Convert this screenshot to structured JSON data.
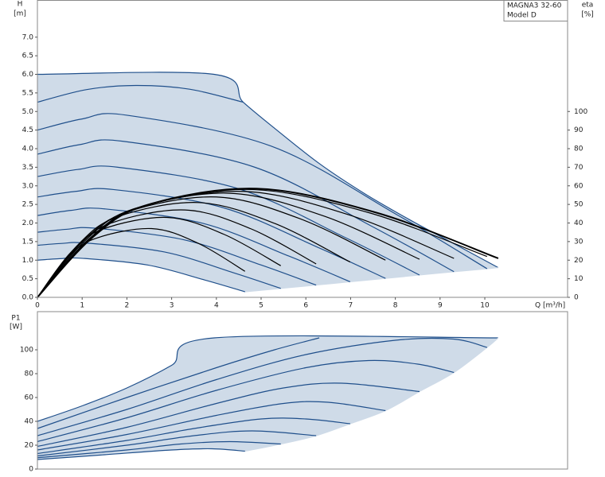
{
  "chart_data": [
    {
      "type": "line",
      "title": "MAGNA3 32-60",
      "subtitle": "Model D",
      "ylabel": "H",
      "ylabel_unit": "[m]",
      "y2label": "eta",
      "y2label_unit": "[%]",
      "xlabel": "Q [m³/h]",
      "xlim": [
        0,
        11.85
      ],
      "xticks": [
        0,
        1,
        2,
        3,
        4,
        5,
        6,
        7,
        8,
        9,
        10
      ],
      "ylim": [
        0,
        8
      ],
      "yticks": [
        {
          "value": 0,
          "label": "0.0"
        },
        0.5,
        {
          "value": 1,
          "label": "1.0"
        },
        1.5,
        {
          "value": 2,
          "label": "2.0"
        },
        2.5,
        {
          "value": 3,
          "label": "3.0"
        },
        3.5,
        {
          "value": 4,
          "label": "4.0"
        },
        4.5,
        {
          "value": 5,
          "label": "5.0"
        },
        5.5,
        {
          "value": 6,
          "label": "6.0"
        },
        6.5,
        {
          "value": 7,
          "label": "7.0"
        }
      ],
      "y2lim": [
        0,
        160
      ],
      "y2ticks": [
        0,
        10,
        20,
        30,
        40,
        50,
        60,
        70,
        80,
        90,
        100
      ],
      "grid": false,
      "shade": "#cfdbe8",
      "series": [
        {
          "color": "#1f4f8b",
          "x": [
            0,
            3.95,
            4.6,
            5.3,
            6.3,
            7.3,
            8.3,
            9.3,
            10.3
          ],
          "values": [
            6.0,
            6.0,
            5.25,
            4.55,
            3.6,
            2.8,
            2.1,
            1.45,
            0.8
          ]
        },
        {
          "color": "#cfdbe8",
          "x": [
            10.3,
            10.05,
            9.31,
            8.54,
            7.78,
            6.99,
            6.23,
            5.44,
            4.64
          ],
          "values": [
            0.8,
            0.77,
            0.69,
            0.6,
            0.51,
            0.42,
            0.33,
            0.24,
            0.15
          ]
        },
        {
          "color": "#1f4f8b",
          "x": [
            0,
            1.1,
            2.2,
            3.4,
            4.6
          ],
          "values": [
            5.25,
            5.59,
            5.7,
            5.6,
            5.25
          ]
        },
        {
          "color": "#1f4f8b",
          "x": [
            0,
            1,
            2,
            5.22,
            8.04,
            10.05
          ],
          "values": [
            4.5,
            4.8,
            4.9,
            4.07,
            2.22,
            0.77
          ]
        },
        {
          "color": "#1f4f8b",
          "x": [
            0,
            0.95,
            1.9,
            4.86,
            7.46,
            9.31
          ],
          "values": [
            3.85,
            4.11,
            4.2,
            3.5,
            1.92,
            0.69
          ]
        },
        {
          "color": "#1f4f8b",
          "x": [
            0,
            0.9,
            1.8,
            4.5,
            6.86,
            8.54
          ],
          "values": [
            3.25,
            3.44,
            3.5,
            2.92,
            1.62,
            0.6
          ]
        },
        {
          "color": "#1f4f8b",
          "x": [
            0,
            0.85,
            1.7,
            4.13,
            6.26,
            7.78
          ],
          "values": [
            2.7,
            2.85,
            2.9,
            2.42,
            1.35,
            0.51
          ]
        },
        {
          "color": "#1f4f8b",
          "x": [
            0,
            0.75,
            1.5,
            3.7,
            5.62,
            6.99
          ],
          "values": [
            2.2,
            2.34,
            2.38,
            1.99,
            1.11,
            0.42
          ]
        },
        {
          "color": "#1f4f8b",
          "x": [
            0,
            0.65,
            1.3,
            3.27,
            5.0,
            6.23
          ],
          "values": [
            1.75,
            1.83,
            1.86,
            1.55,
            0.87,
            0.33
          ]
        },
        {
          "color": "#1f4f8b",
          "x": [
            0,
            0.55,
            1.1,
            2.84,
            4.36,
            5.44
          ],
          "values": [
            1.4,
            1.45,
            1.46,
            1.22,
            0.67,
            0.24
          ]
        },
        {
          "color": "#1f4f8b",
          "x": [
            0,
            0.5,
            1.0,
            2.46,
            3.73,
            4.64
          ],
          "values": [
            1.0,
            1.04,
            1.05,
            0.87,
            0.47,
            0.15
          ]
        },
        {
          "color": "#000000",
          "axis": "y2",
          "x": [
            0,
            0.64,
            1.28,
            2.55,
            3.6,
            4.64
          ],
          "values": [
            0,
            20.4,
            31.5,
            37,
            29,
            14
          ]
        },
        {
          "color": "#000000",
          "axis": "y2",
          "x": [
            0,
            0.73,
            1.45,
            2.9,
            4.17,
            5.44
          ],
          "values": [
            0,
            23.7,
            36.6,
            43,
            33.9,
            17
          ]
        },
        {
          "color": "#000000",
          "axis": "y2",
          "x": [
            0,
            0.83,
            1.65,
            3.3,
            4.77,
            6.23
          ],
          "values": [
            0,
            25.9,
            40,
            47,
            36.9,
            18
          ]
        },
        {
          "color": "#000000",
          "axis": "y2",
          "x": [
            0,
            0.9,
            1.8,
            3.6,
            5.3,
            6.99
          ],
          "values": [
            0,
            28.1,
            43.4,
            51,
            39.8,
            19
          ]
        },
        {
          "color": "#000000",
          "axis": "y2",
          "x": [
            0,
            1,
            2,
            4,
            5.89,
            7.78
          ],
          "values": [
            0,
            29.7,
            45.9,
            54,
            42.1,
            20
          ]
        },
        {
          "color": "#000000",
          "axis": "y2",
          "x": [
            0,
            1.08,
            2.15,
            4.3,
            6.42,
            8.54
          ],
          "values": [
            0,
            30.8,
            47.6,
            56,
            43.6,
            20.5
          ]
        },
        {
          "color": "#000000",
          "axis": "y2",
          "x": [
            0,
            1.15,
            2.3,
            4.6,
            6.96,
            9.31
          ],
          "values": [
            0,
            31.4,
            48.5,
            57,
            44.4,
            21
          ]
        },
        {
          "color": "#000000",
          "axis": "y2",
          "x": [
            0,
            1.2,
            2.4,
            4.8,
            7.43,
            10.05
          ],
          "values": [
            0,
            31.9,
            49.3,
            58,
            45.4,
            22
          ]
        },
        {
          "color": "#000000",
          "axis": "y2",
          "width": 2,
          "x": [
            0,
            1.23,
            2.45,
            4.9,
            7.6,
            10.3
          ],
          "values": [
            0,
            32.2,
            49.7,
            58.5,
            45.4,
            21
          ]
        }
      ]
    },
    {
      "type": "line",
      "ylabel": "P1",
      "ylabel_unit": "[W]",
      "xlim": [
        0,
        11.85
      ],
      "ylim": [
        0,
        132
      ],
      "yticks": [
        0,
        20,
        40,
        60,
        80,
        100
      ],
      "grid": false,
      "shade": "#cfdbe8",
      "series": [
        {
          "color": "#1f4f8b",
          "x": [
            0,
            1,
            2,
            3,
            3.95,
            10.3
          ],
          "values": [
            40,
            53,
            68,
            87,
            110,
            110
          ]
        },
        {
          "color": "#cfdbe8",
          "x": [
            10.3,
            10.05,
            9.31,
            8.54,
            7.78,
            6.99,
            6.23,
            5.44,
            4.64
          ],
          "values": [
            110,
            102,
            81,
            65,
            49,
            38,
            28,
            21,
            15
          ]
        },
        {
          "color": "#1f4f8b",
          "x": [
            0,
            2,
            4,
            5.3,
            6.3
          ],
          "values": [
            34,
            60,
            85,
            100,
            110
          ]
        },
        {
          "color": "#1f4f8b",
          "x": [
            0,
            2,
            4,
            6,
            8,
            9.3,
            10.05
          ],
          "values": [
            28,
            50,
            75,
            96,
            108,
            109,
            102
          ]
        },
        {
          "color": "#1f4f8b",
          "x": [
            0,
            2,
            4,
            6,
            7.4,
            8.5,
            9.31
          ],
          "values": [
            23,
            43,
            66,
            85,
            91,
            88,
            81
          ]
        },
        {
          "color": "#1f4f8b",
          "x": [
            0,
            2,
            4,
            5.5,
            6.8,
            8.54
          ],
          "values": [
            19,
            35,
            55,
            68,
            72,
            65
          ]
        },
        {
          "color": "#1f4f8b",
          "x": [
            0,
            2,
            4,
            5.5,
            6.5,
            7.78
          ],
          "values": [
            16,
            29,
            45,
            55,
            56,
            49
          ]
        },
        {
          "color": "#1f4f8b",
          "x": [
            0,
            2,
            3.5,
            5,
            6,
            6.99
          ],
          "values": [
            13,
            24,
            34,
            42,
            42,
            38
          ]
        },
        {
          "color": "#1f4f8b",
          "x": [
            0,
            2,
            3.5,
            4.8,
            6.23
          ],
          "values": [
            11,
            20,
            28,
            32,
            28
          ]
        },
        {
          "color": "#1f4f8b",
          "x": [
            0,
            2,
            3.2,
            4.3,
            5.44
          ],
          "values": [
            9.5,
            16,
            21,
            23,
            21
          ]
        },
        {
          "color": "#1f4f8b",
          "x": [
            0,
            1.5,
            3,
            3.9,
            4.64
          ],
          "values": [
            8,
            12,
            16,
            17,
            15
          ]
        }
      ]
    }
  ]
}
